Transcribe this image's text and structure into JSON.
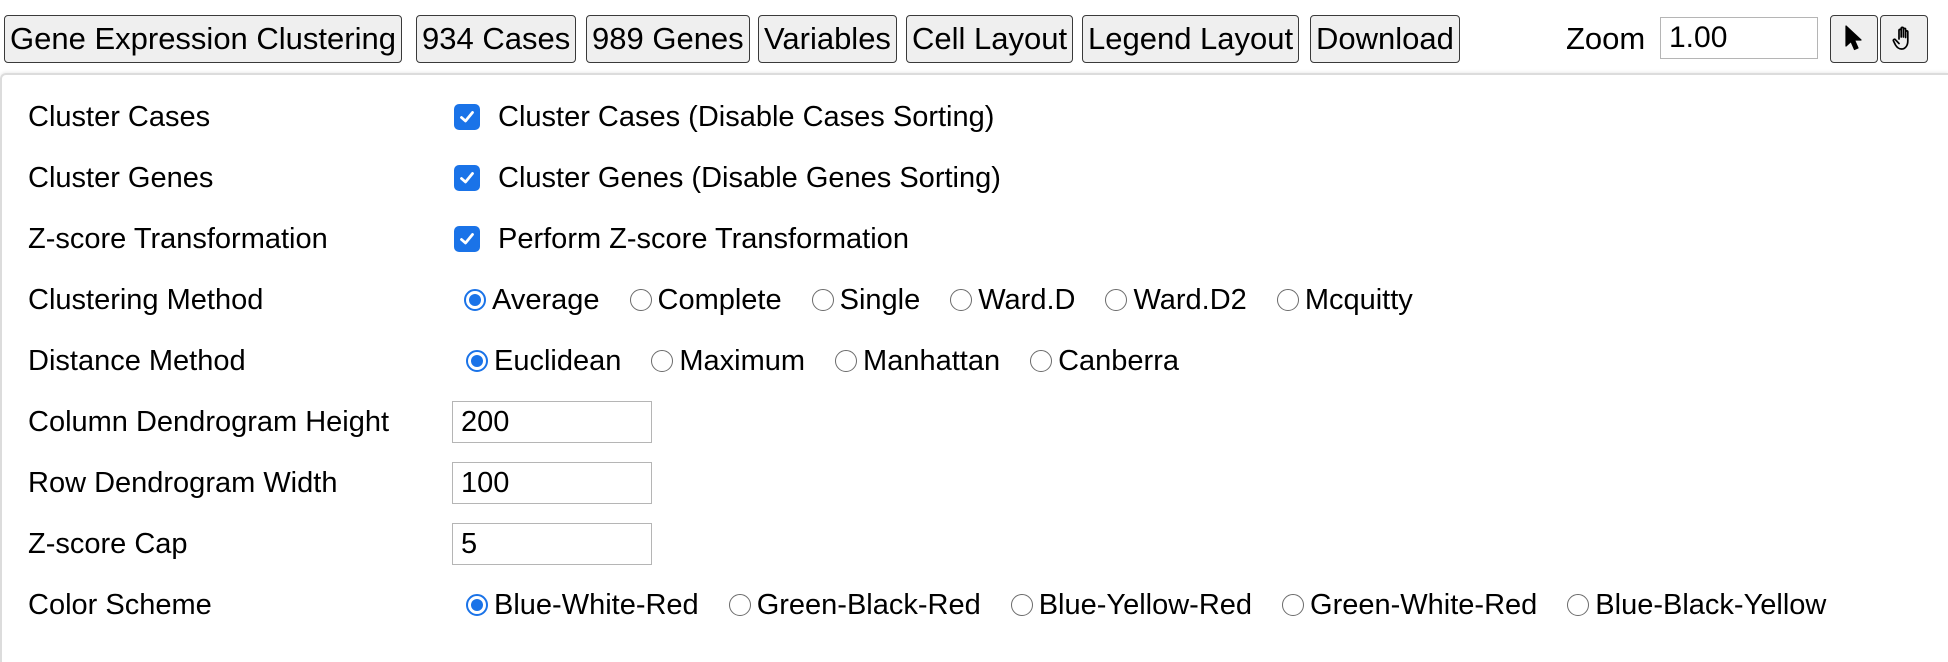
{
  "toolbar": {
    "buttons": [
      {
        "label": "Gene Expression Clustering"
      },
      {
        "label": "934 Cases"
      },
      {
        "label": "989 Genes"
      },
      {
        "label": "Variables"
      },
      {
        "label": "Cell Layout"
      },
      {
        "label": "Legend Layout"
      },
      {
        "label": "Download"
      }
    ],
    "zoom_label": "Zoom",
    "zoom_value": "1.00",
    "tools": [
      {
        "icon": "arrow-cursor-icon"
      },
      {
        "icon": "pan-hand-icon"
      }
    ]
  },
  "settings": {
    "cluster_cases": {
      "label": "Cluster Cases",
      "checkbox_label": "Cluster Cases (Disable Cases Sorting)",
      "checked": true
    },
    "cluster_genes": {
      "label": "Cluster Genes",
      "checkbox_label": "Cluster Genes (Disable Genes Sorting)",
      "checked": true
    },
    "zscore_transformation": {
      "label": "Z-score Transformation",
      "checkbox_label": "Perform Z-score Transformation",
      "checked": true
    },
    "clustering_method": {
      "label": "Clustering Method",
      "options": [
        "Average",
        "Complete",
        "Single",
        "Ward.D",
        "Ward.D2",
        "Mcquitty"
      ],
      "selected": "Average"
    },
    "distance_method": {
      "label": "Distance Method",
      "options": [
        "Euclidean",
        "Maximum",
        "Manhattan",
        "Canberra"
      ],
      "selected": "Euclidean"
    },
    "column_dendrogram_height": {
      "label": "Column Dendrogram Height",
      "value": "200"
    },
    "row_dendrogram_width": {
      "label": "Row Dendrogram Width",
      "value": "100"
    },
    "zscore_cap": {
      "label": "Z-score Cap",
      "value": "5"
    },
    "color_scheme": {
      "label": "Color Scheme",
      "options": [
        "Blue-White-Red",
        "Green-Black-Red",
        "Blue-Yellow-Red",
        "Green-White-Red",
        "Blue-Black-Yellow"
      ],
      "selected": "Blue-White-Red"
    }
  },
  "colors": {
    "accent": "#1a73e8",
    "button_bg": "#efefef",
    "button_border": "#3a3a3a"
  }
}
